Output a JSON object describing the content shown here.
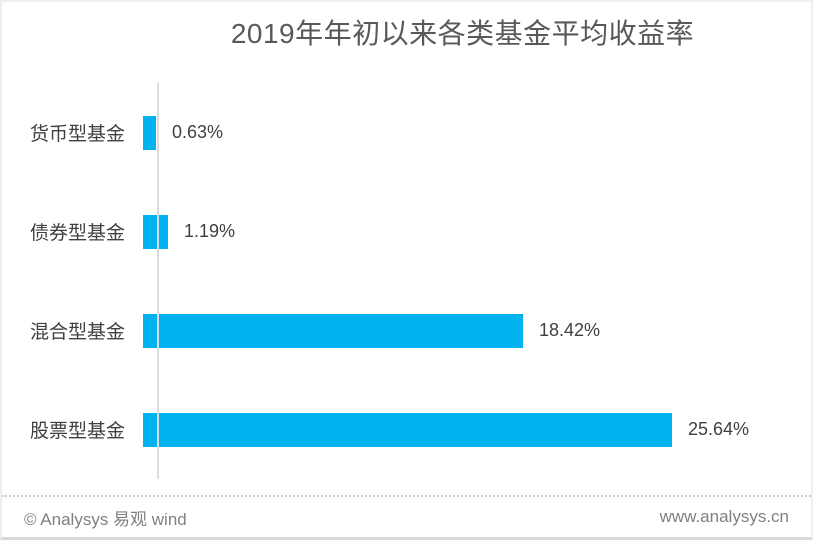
{
  "title": "2019年年初以来各类基金平均收益率",
  "chart_data": {
    "type": "bar",
    "orientation": "horizontal",
    "title": "2019年年初以来各类基金平均收益率",
    "categories": [
      "货币型基金",
      "债券型基金",
      "混合型基金",
      "股票型基金"
    ],
    "values": [
      0.63,
      1.19,
      18.42,
      25.64
    ],
    "value_labels": [
      "0.63%",
      "1.19%",
      "18.42%",
      "25.64%"
    ],
    "unit": "%",
    "xlim": [
      0,
      30
    ],
    "grid": false,
    "legend": false,
    "bar_color": "#00b2ef",
    "axis_color": "#dcdcdc"
  },
  "footer": {
    "left": "© Analysys 易观 wind",
    "right": "www.analysys.cn"
  }
}
